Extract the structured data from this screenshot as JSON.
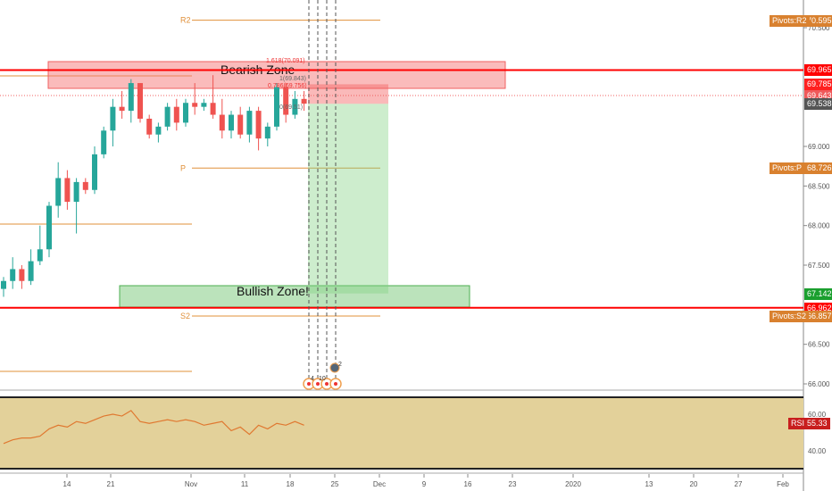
{
  "price_axis": {
    "ticks": [
      "70.500",
      "69.000",
      "68.500",
      "68.000",
      "67.500",
      "66.500",
      "66.000"
    ],
    "tick_values": [
      70.5,
      69,
      68.5,
      68,
      67.5,
      66.5,
      66
    ]
  },
  "labels": [
    {
      "name": "pivots-r2",
      "tag": "Pivots:R2",
      "value": "70.595",
      "price": 70.595,
      "color": "#d9812f"
    },
    {
      "name": "resistance-line",
      "value": "69.965",
      "price": 69.965,
      "color": "#ff0000"
    },
    {
      "name": "bearish-top",
      "value": "69.785",
      "price": 69.785,
      "color": "#ff2020"
    },
    {
      "name": "entry",
      "value": "69.643",
      "price": 69.643,
      "color": "#f0595a"
    },
    {
      "name": "last-price",
      "value": "69.538",
      "price": 69.538,
      "color": "#555555"
    },
    {
      "name": "pivots-p",
      "tag": "Pivots:P",
      "value": "68.726",
      "price": 68.726,
      "color": "#d9812f"
    },
    {
      "name": "target",
      "value": "67.142",
      "price": 67.142,
      "color": "#1a9f2e"
    },
    {
      "name": "support-line",
      "value": "66.962",
      "price": 66.962,
      "color": "#ff0000"
    },
    {
      "name": "pivots-s2",
      "tag": "Pivots:S2",
      "value": "66.857",
      "price": 66.857,
      "color": "#d9812f"
    }
  ],
  "pivots": {
    "r2": "R2",
    "p": "P",
    "s2": "S2"
  },
  "zones": {
    "bearish": "Bearish Zone",
    "bullish": "Bullish Zone!"
  },
  "fib": {
    "top": "1.618(70.091)",
    "l1": "1(69.843)",
    "l2": "0.786(69.756)",
    "bottom": "0(69.51)"
  },
  "events": {
    "count1": "4",
    "count2": "10",
    "count3": "2"
  },
  "rsi": {
    "tag": "RSI",
    "value": "55.33",
    "ticks": [
      "60.00",
      "40.00"
    ],
    "series": [
      44,
      46,
      47,
      47,
      48,
      52,
      54,
      53,
      56,
      55,
      57,
      59,
      60,
      59,
      62,
      56,
      55,
      56,
      57,
      56,
      57,
      56,
      54,
      55,
      56,
      51,
      53,
      49,
      54,
      52,
      55,
      54,
      56,
      54
    ]
  },
  "time_axis": [
    "14",
    "21",
    "Nov",
    "11",
    "18",
    "25",
    "Dec",
    "9",
    "16",
    "23",
    "2020",
    "13",
    "20",
    "27",
    "Feb"
  ],
  "chart_data": {
    "type": "candlestick",
    "series": [
      [
        67.2,
        67.35,
        67.1,
        67.3
      ],
      [
        67.3,
        67.6,
        67.2,
        67.45
      ],
      [
        67.45,
        67.5,
        67.2,
        67.3
      ],
      [
        67.3,
        67.7,
        67.25,
        67.55
      ],
      [
        67.55,
        68.0,
        67.5,
        67.7
      ],
      [
        67.7,
        68.3,
        67.6,
        68.25
      ],
      [
        68.25,
        68.8,
        68.1,
        68.6
      ],
      [
        68.6,
        68.7,
        68.2,
        68.3
      ],
      [
        68.3,
        68.6,
        67.9,
        68.55
      ],
      [
        68.55,
        68.6,
        68.4,
        68.45
      ],
      [
        68.45,
        69.0,
        68.4,
        68.9
      ],
      [
        68.9,
        69.25,
        68.85,
        69.2
      ],
      [
        69.2,
        69.6,
        69.0,
        69.5
      ],
      [
        69.5,
        69.7,
        69.35,
        69.45
      ],
      [
        69.45,
        69.85,
        69.3,
        69.8
      ],
      [
        69.8,
        69.8,
        69.3,
        69.35
      ],
      [
        69.35,
        69.4,
        69.1,
        69.15
      ],
      [
        69.15,
        69.3,
        69.05,
        69.25
      ],
      [
        69.25,
        69.55,
        69.2,
        69.5
      ],
      [
        69.5,
        69.6,
        69.2,
        69.3
      ],
      [
        69.3,
        69.6,
        69.25,
        69.55
      ],
      [
        69.55,
        69.8,
        69.4,
        69.5
      ],
      [
        69.5,
        69.6,
        69.45,
        69.55
      ],
      [
        69.55,
        69.9,
        69.35,
        69.4
      ],
      [
        69.4,
        69.6,
        69.1,
        69.2
      ],
      [
        69.2,
        69.45,
        69.1,
        69.4
      ],
      [
        69.4,
        69.5,
        69.1,
        69.15
      ],
      [
        69.15,
        69.5,
        69.05,
        69.45
      ],
      [
        69.45,
        69.5,
        68.95,
        69.1
      ],
      [
        69.1,
        69.3,
        69.0,
        69.25
      ],
      [
        69.25,
        69.8,
        69.2,
        69.75
      ],
      [
        69.75,
        69.8,
        69.3,
        69.4
      ],
      [
        69.4,
        69.7,
        69.35,
        69.6
      ],
      [
        69.6,
        69.7,
        69.45,
        69.54
      ]
    ]
  }
}
